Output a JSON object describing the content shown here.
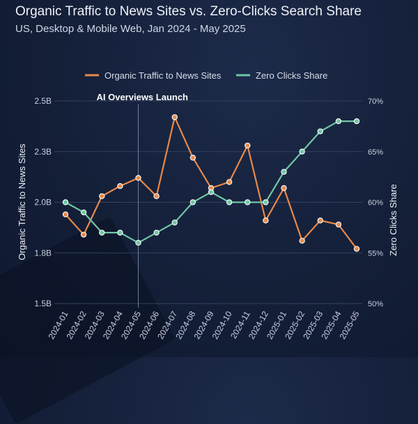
{
  "header": {
    "title": "Organic Traffic to News Sites vs. Zero-Clicks Search Share",
    "subtitle": "US, Desktop & Mobile Web, Jan 2024 - May 2025"
  },
  "colors": {
    "organic": "#e8894a",
    "zero_clicks": "#6fc7a4",
    "grid": "#33415f",
    "annotation_line": "#6e7c99"
  },
  "chart_data": {
    "type": "line",
    "categories": [
      "2024-01",
      "2024-02",
      "2024-03",
      "2024-04",
      "2024-05",
      "2024-06",
      "2024-07",
      "2024-08",
      "2024-09",
      "2024-10",
      "2024-11",
      "2024-12",
      "2025-01",
      "2025-02",
      "2025-03",
      "2025-04",
      "2025-05"
    ],
    "series": [
      {
        "name": "Organic Traffic to News Sites",
        "axis": "left",
        "values": [
          1.94,
          1.84,
          2.03,
          2.08,
          2.12,
          2.03,
          2.42,
          2.22,
          2.07,
          2.1,
          2.28,
          1.91,
          2.07,
          1.81,
          1.91,
          1.89,
          1.77
        ]
      },
      {
        "name": "Zero Clicks Share",
        "axis": "right",
        "values": [
          60,
          59,
          57,
          57,
          56,
          57,
          58,
          60,
          61,
          60,
          60,
          60,
          63,
          65,
          67,
          68,
          68
        ]
      }
    ],
    "y_left": {
      "label": "Organic Traffic to News Sites",
      "ticks": [
        "2.5B",
        "2.3B",
        "2.0B",
        "1.8B",
        "1.5B"
      ],
      "lim": [
        1.5,
        2.5
      ]
    },
    "y_right": {
      "label": "Zero Clicks Share",
      "ticks": [
        "70%",
        "65%",
        "60%",
        "55%",
        "50%"
      ],
      "lim": [
        50,
        70
      ]
    },
    "annotation": {
      "label": "AI Overviews Launch",
      "at": "2024-05"
    },
    "legend_position": "top-center",
    "grid": true
  }
}
